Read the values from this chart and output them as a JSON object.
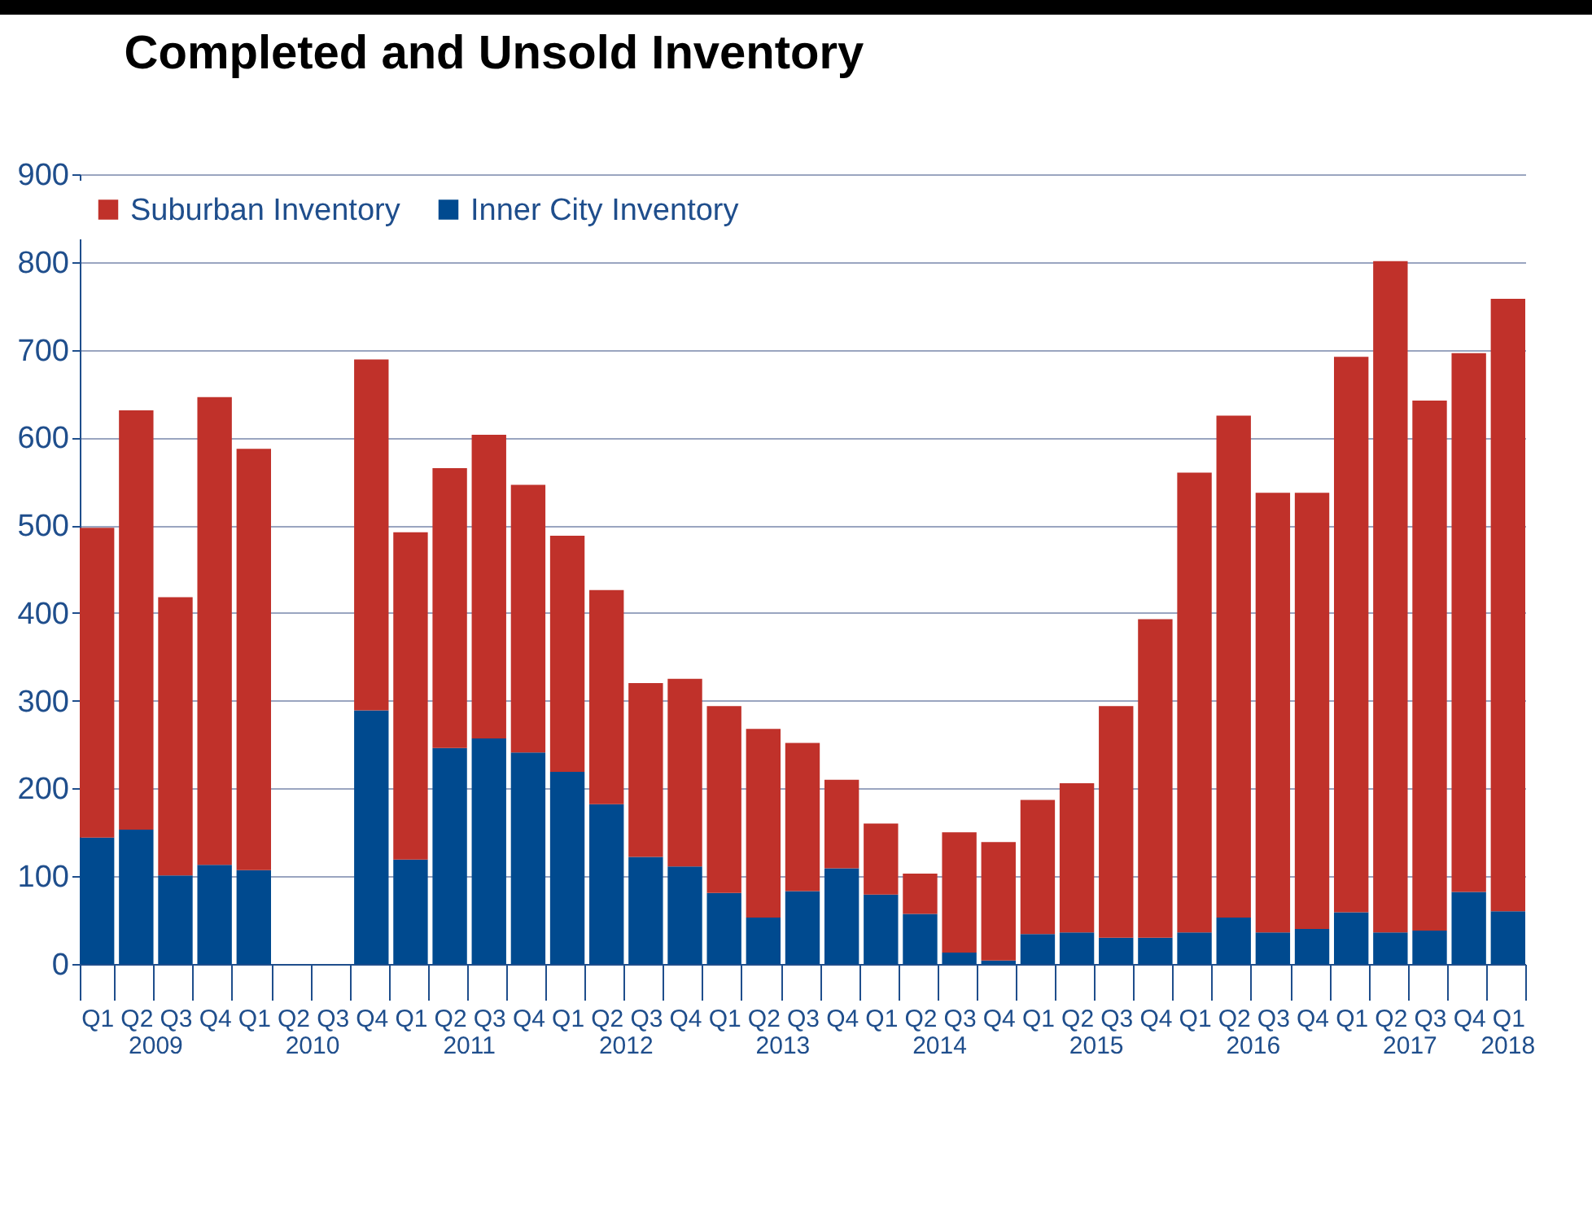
{
  "chart_data": {
    "type": "bar",
    "title": "Completed and Unsold Inventory",
    "stacked": true,
    "categories": [
      "Q1",
      "Q2",
      "Q3",
      "Q4",
      "Q1",
      "Q2",
      "Q3",
      "Q4",
      "Q1",
      "Q2",
      "Q3",
      "Q4",
      "Q1",
      "Q2",
      "Q3",
      "Q4",
      "Q1",
      "Q2",
      "Q3",
      "Q4",
      "Q1",
      "Q2",
      "Q3",
      "Q4",
      "Q1",
      "Q2",
      "Q3",
      "Q4",
      "Q1",
      "Q2",
      "Q3",
      "Q4",
      "Q1",
      "Q2",
      "Q3",
      "Q4",
      "Q1"
    ],
    "annotations": [
      "2009",
      "2010",
      "2011",
      "2012",
      "2013",
      "2014",
      "2015",
      "2016",
      "2017",
      "2018"
    ],
    "series": [
      {
        "name": "Inner City Inventory",
        "color": "#004a8f",
        "values": [
          144,
          153,
          101,
          113,
          107,
          null,
          null,
          289,
          119,
          246,
          257,
          241,
          219,
          182,
          122,
          111,
          81,
          53,
          83,
          109,
          79,
          57,
          13,
          4,
          34,
          36,
          30,
          30,
          36,
          53,
          36,
          40,
          59,
          36,
          38,
          82,
          60
        ]
      },
      {
        "name": "Suburban Inventory",
        "color": "#c0312a",
        "values": [
          353,
          478,
          317,
          533,
          480,
          null,
          null,
          400,
          373,
          319,
          346,
          305,
          269,
          244,
          198,
          214,
          213,
          215,
          169,
          101,
          81,
          46,
          137,
          135,
          153,
          170,
          264,
          363,
          524,
          572,
          501,
          497,
          633,
          765,
          604,
          614,
          698
        ]
      }
    ],
    "ylim": [
      0,
      900
    ],
    "yticks": [
      0,
      100,
      200,
      300,
      400,
      500,
      600,
      700,
      800,
      900
    ],
    "grid": "y",
    "legend": "top"
  }
}
